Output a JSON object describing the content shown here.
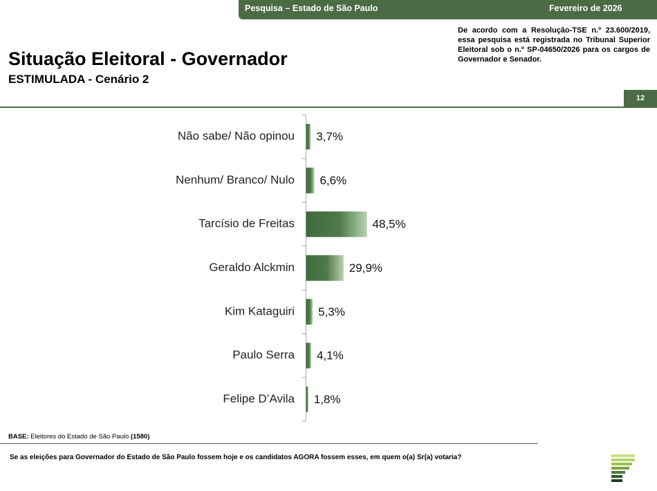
{
  "header": {
    "survey": "Pesquisa – Estado de São Paulo",
    "date": "Fevereiro de 2026"
  },
  "note": "De acordo com a Resolução-TSE n.º 23.600/2019, essa pesquisa está registrada no Tribunal Superior Eleitoral sob o n.º SP-04650/2026 para os cargos de Governador e Senador.",
  "page_number": "12",
  "base": {
    "label": "BASE:",
    "text": "Eleitores do Estado de São Paulo",
    "count": "(1580)"
  },
  "question": "Se as eleições para Governador do Estado de São Paulo fossem hoje e os candidatos AGORA fossem esses, em quem o(a) Sr(a) votaria?",
  "chart_data": {
    "type": "hbar",
    "title": "Situação Eleitoral - Governador",
    "subtitle": "ESTIMULADA - Cenário 2",
    "categories": [
      "Não sabe/ Não opinou",
      "Nenhum/ Branco/ Nulo",
      "Tarcísio de Freitas",
      "Geraldo Alckmin",
      "Kim Kataguiri",
      "Paulo Serra",
      "Felipe D’Avila"
    ],
    "values": [
      3.7,
      6.6,
      48.5,
      29.9,
      5.3,
      4.1,
      1.8
    ],
    "value_labels": [
      "3,7%",
      "6,6%",
      "48,5%",
      "29,9%",
      "5,3%",
      "4,1%",
      "1,8%"
    ],
    "xlim": [
      0,
      100
    ],
    "color": "#3e6b3a"
  }
}
